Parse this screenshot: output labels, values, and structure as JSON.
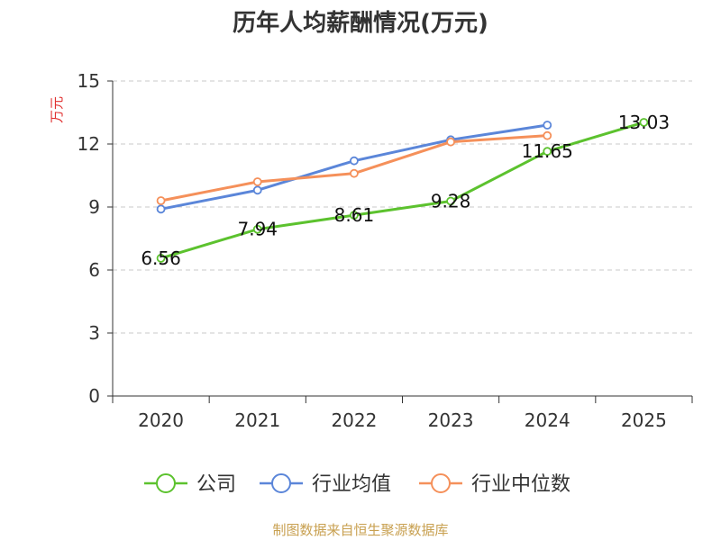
{
  "chart_data": {
    "type": "line",
    "title": "历年人均薪酬情况(万元)",
    "ylabel": "万元",
    "xlabel": "",
    "categories": [
      "2020",
      "2021",
      "2022",
      "2023",
      "2024",
      "2025"
    ],
    "ylim": [
      0,
      15
    ],
    "yticks": [
      0,
      3,
      6,
      9,
      12,
      15
    ],
    "grid": true,
    "legend_position": "bottom",
    "series": [
      {
        "name": "公司",
        "color": "#5cc22e",
        "values": [
          6.56,
          7.94,
          8.61,
          9.28,
          11.65,
          13.03
        ],
        "labels": [
          "6.56",
          "7.94",
          "8.61",
          "9.28",
          "11.65",
          "13.03"
        ]
      },
      {
        "name": "行业均值",
        "color": "#5b86d9",
        "values": [
          8.9,
          9.8,
          11.2,
          12.2,
          12.9,
          null
        ]
      },
      {
        "name": "行业中位数",
        "color": "#f5905a",
        "values": [
          9.3,
          10.2,
          10.6,
          12.1,
          12.4,
          null
        ]
      }
    ],
    "source": "制图数据来自恒生聚源数据库"
  }
}
